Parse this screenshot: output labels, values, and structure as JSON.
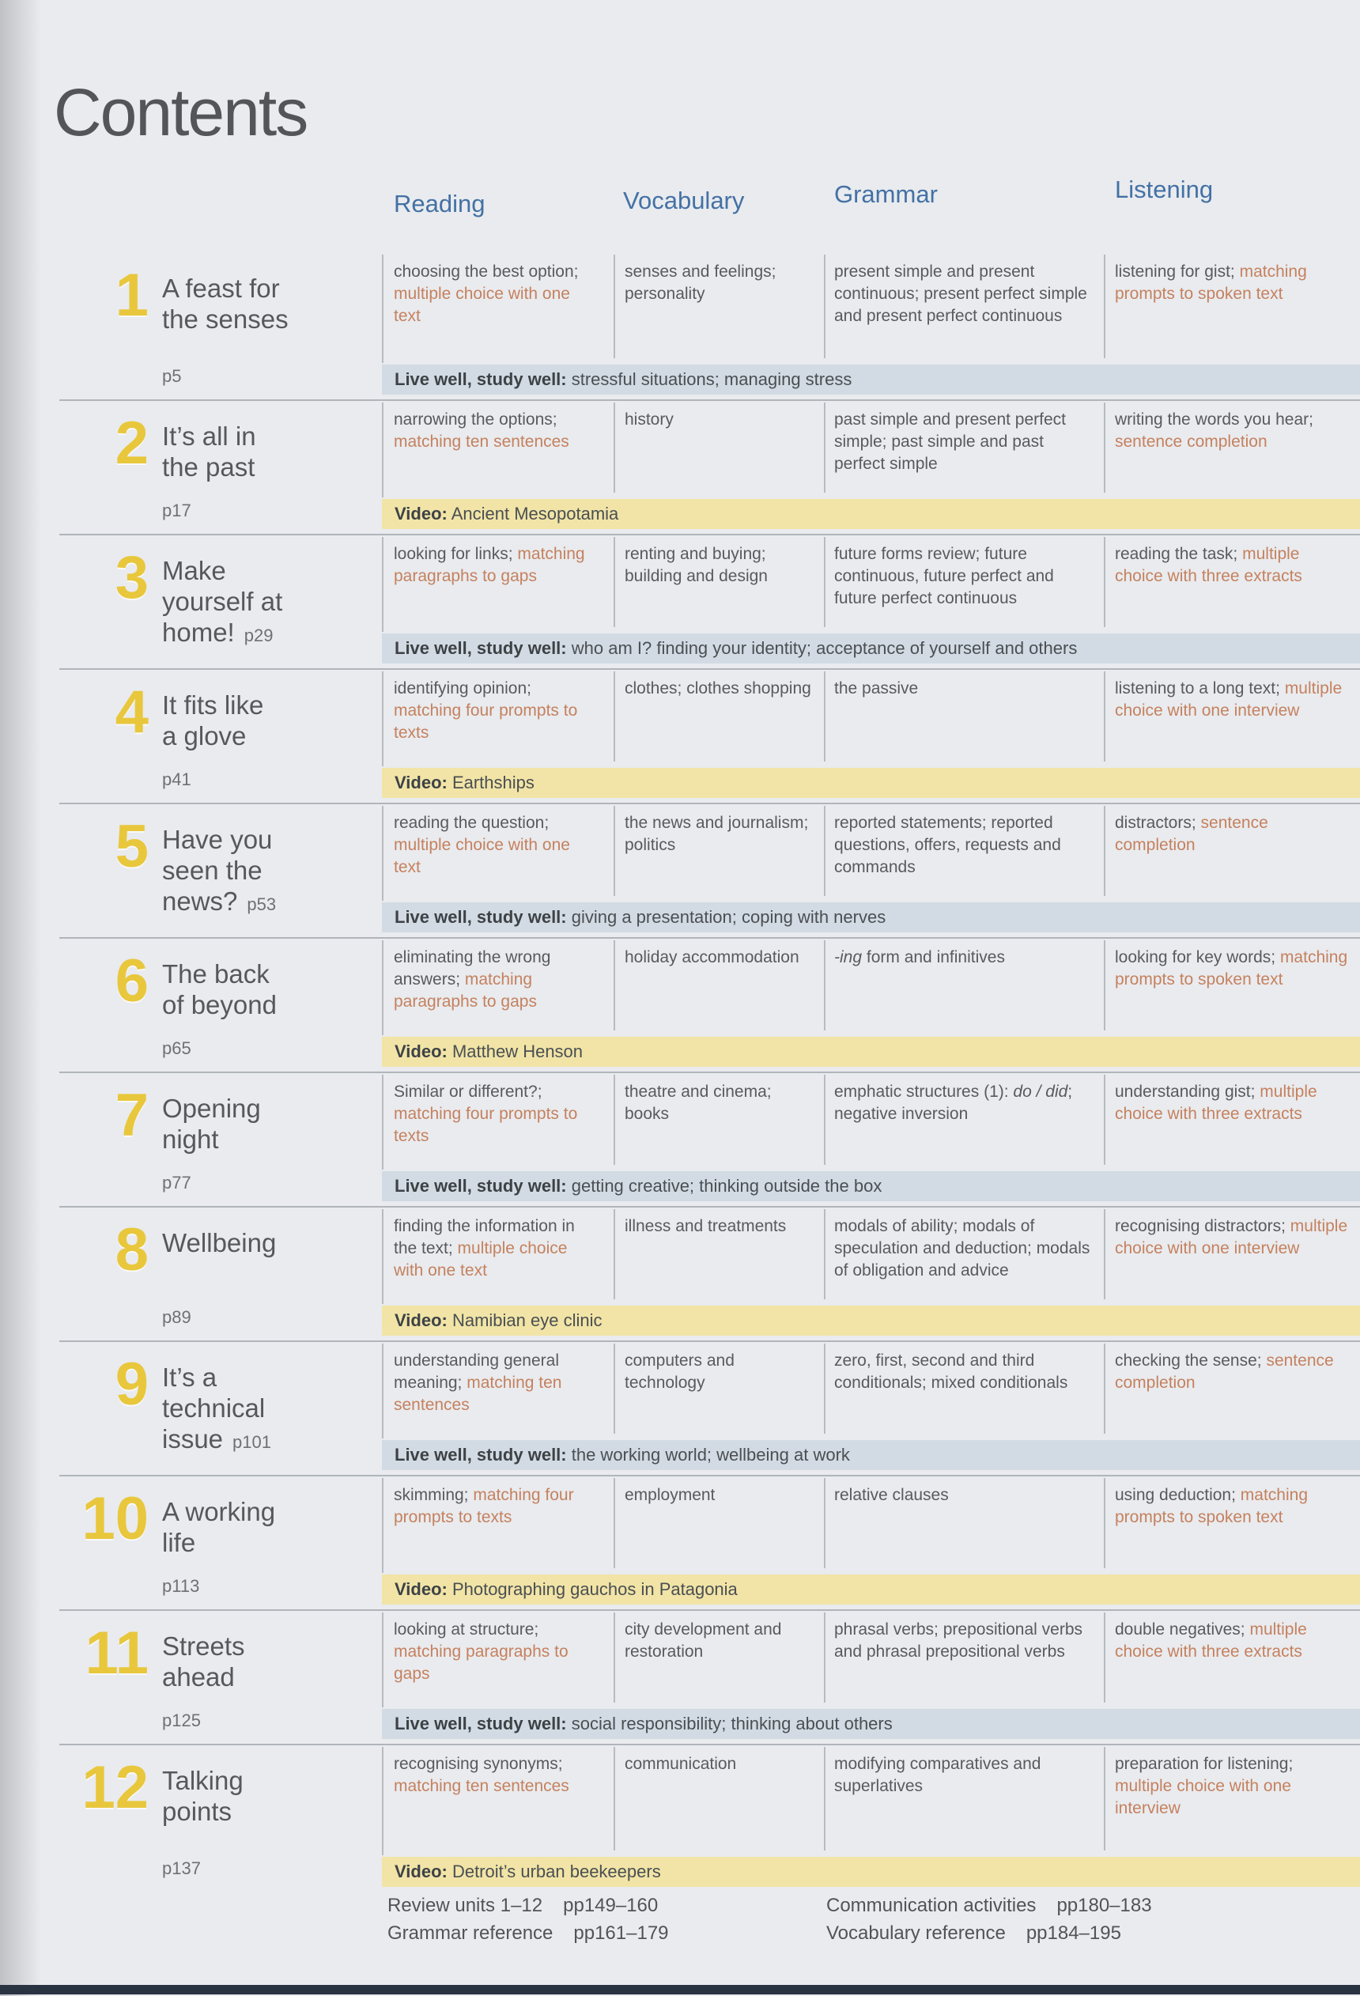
{
  "page_title": "Contents",
  "colors": {
    "header_blue": "#4471a5",
    "number_yellow": "#e8c73c",
    "accent_orange": "#c5815f",
    "bar_live_bg": "#d2dbe3",
    "bar_video_bg": "#f1e4a6"
  },
  "columns": [
    {
      "label": "Reading"
    },
    {
      "label": "Vocabulary"
    },
    {
      "label": "Grammar"
    },
    {
      "label": "Listening"
    }
  ],
  "units": [
    {
      "number": "1",
      "title": "A feast for\nthe senses",
      "page": "p5",
      "page_inline": false,
      "reading": [
        {
          "t": "choosing the best option; ",
          "s": "p"
        },
        {
          "t": "multiple choice with one text",
          "s": "a"
        }
      ],
      "vocabulary": [
        {
          "t": "senses and feelings; personality",
          "s": "p"
        }
      ],
      "grammar": [
        {
          "t": "present simple and present continuous; present perfect simple and present perfect continuous",
          "s": "p"
        }
      ],
      "listening": [
        {
          "t": "listening for gist; ",
          "s": "p"
        },
        {
          "t": "matching prompts to spoken text",
          "s": "a"
        }
      ],
      "footer": {
        "type": "live",
        "label": "Live well, study well:",
        "text": " stressful situations; managing stress"
      }
    },
    {
      "number": "2",
      "title": "It’s all in\nthe past",
      "page": "p17",
      "page_inline": false,
      "reading": [
        {
          "t": "narrowing the options; ",
          "s": "p"
        },
        {
          "t": "matching ten sentences",
          "s": "a"
        }
      ],
      "vocabulary": [
        {
          "t": "history",
          "s": "p"
        }
      ],
      "grammar": [
        {
          "t": "past simple and present perfect simple; past simple and past perfect simple",
          "s": "p"
        }
      ],
      "listening": [
        {
          "t": "writing the words you hear; ",
          "s": "p"
        },
        {
          "t": "sentence completion",
          "s": "a"
        }
      ],
      "footer": {
        "type": "video",
        "label": "Video:",
        "text": " Ancient Mesopotamia"
      }
    },
    {
      "number": "3",
      "title": "Make\nyourself at\nhome!",
      "page": "p29",
      "page_inline": true,
      "reading": [
        {
          "t": "looking for links; ",
          "s": "p"
        },
        {
          "t": "matching paragraphs to gaps",
          "s": "a"
        }
      ],
      "vocabulary": [
        {
          "t": "renting and buying; building and design",
          "s": "p"
        }
      ],
      "grammar": [
        {
          "t": "future forms review; future continuous, future perfect and future perfect continuous",
          "s": "p"
        }
      ],
      "listening": [
        {
          "t": "reading the task; ",
          "s": "p"
        },
        {
          "t": "multiple choice with three extracts",
          "s": "a"
        }
      ],
      "footer": {
        "type": "live",
        "label": "Live well, study well:",
        "text": " who am I? finding your identity; acceptance of yourself and others"
      }
    },
    {
      "number": "4",
      "title": "It fits like\na glove",
      "page": "p41",
      "page_inline": false,
      "reading": [
        {
          "t": "identifying opinion; ",
          "s": "p"
        },
        {
          "t": "matching four prompts to texts",
          "s": "a"
        }
      ],
      "vocabulary": [
        {
          "t": "clothes; clothes shopping",
          "s": "p"
        }
      ],
      "grammar": [
        {
          "t": "the passive",
          "s": "p"
        }
      ],
      "listening": [
        {
          "t": "listening to a long text; ",
          "s": "p"
        },
        {
          "t": "multiple choice with one interview",
          "s": "a"
        }
      ],
      "footer": {
        "type": "video",
        "label": "Video:",
        "text": " Earthships"
      }
    },
    {
      "number": "5",
      "title": "Have you\nseen the\nnews?",
      "page": "p53",
      "page_inline": true,
      "reading": [
        {
          "t": "reading the question; ",
          "s": "p"
        },
        {
          "t": "multiple choice with one text",
          "s": "a"
        }
      ],
      "vocabulary": [
        {
          "t": "the news and journalism; politics",
          "s": "p"
        }
      ],
      "grammar": [
        {
          "t": "reported statements; reported questions, offers, requests and commands",
          "s": "p"
        }
      ],
      "listening": [
        {
          "t": "distractors; ",
          "s": "p"
        },
        {
          "t": "sentence completion",
          "s": "a"
        }
      ],
      "footer": {
        "type": "live",
        "label": "Live well, study well:",
        "text": " giving a presentation; coping with nerves"
      }
    },
    {
      "number": "6",
      "title": "The back\nof beyond",
      "page": "p65",
      "page_inline": false,
      "reading": [
        {
          "t": "eliminating the wrong answers; ",
          "s": "p"
        },
        {
          "t": "matching paragraphs to gaps",
          "s": "a"
        }
      ],
      "vocabulary": [
        {
          "t": "holiday accommodation",
          "s": "p"
        }
      ],
      "grammar": [
        {
          "t": "-ing",
          "s": "i"
        },
        {
          "t": " form and infinitives",
          "s": "p"
        }
      ],
      "listening": [
        {
          "t": "looking for key words; ",
          "s": "p"
        },
        {
          "t": "matching prompts to spoken text",
          "s": "a"
        }
      ],
      "footer": {
        "type": "video",
        "label": "Video:",
        "text": " Matthew Henson"
      }
    },
    {
      "number": "7",
      "title": "Opening\nnight",
      "page": "p77",
      "page_inline": false,
      "reading": [
        {
          "t": "Similar or different?; ",
          "s": "p"
        },
        {
          "t": "matching four prompts to texts",
          "s": "a"
        }
      ],
      "vocabulary": [
        {
          "t": "theatre and cinema; books",
          "s": "p"
        }
      ],
      "grammar": [
        {
          "t": "emphatic structures (1): ",
          "s": "p"
        },
        {
          "t": "do / did",
          "s": "i"
        },
        {
          "t": "; negative inversion",
          "s": "p"
        }
      ],
      "listening": [
        {
          "t": "understanding gist; ",
          "s": "p"
        },
        {
          "t": "multiple choice with three extracts",
          "s": "a"
        }
      ],
      "footer": {
        "type": "live",
        "label": "Live well, study well:",
        "text": " getting creative; thinking outside the box"
      }
    },
    {
      "number": "8",
      "title": "Wellbeing",
      "page": "p89",
      "page_inline": false,
      "reading": [
        {
          "t": "finding the information in the text; ",
          "s": "p"
        },
        {
          "t": "multiple choice with one text",
          "s": "a"
        }
      ],
      "vocabulary": [
        {
          "t": "illness and treatments",
          "s": "p"
        }
      ],
      "grammar": [
        {
          "t": "modals of ability; modals of speculation and deduction; modals of obligation and advice",
          "s": "p"
        }
      ],
      "listening": [
        {
          "t": "recognising distractors; ",
          "s": "p"
        },
        {
          "t": "multiple choice with one interview",
          "s": "a"
        }
      ],
      "footer": {
        "type": "video",
        "label": "Video:",
        "text": " Namibian eye clinic"
      }
    },
    {
      "number": "9",
      "title": "It’s a\ntechnical\nissue",
      "page": "p101",
      "page_inline": true,
      "reading": [
        {
          "t": "understanding general meaning; ",
          "s": "p"
        },
        {
          "t": "matching ten sentences",
          "s": "a"
        }
      ],
      "vocabulary": [
        {
          "t": "computers and technology",
          "s": "p"
        }
      ],
      "grammar": [
        {
          "t": "zero, first, second and third conditionals; mixed conditionals",
          "s": "p"
        }
      ],
      "listening": [
        {
          "t": "checking the sense; ",
          "s": "p"
        },
        {
          "t": "sentence completion",
          "s": "a"
        }
      ],
      "footer": {
        "type": "live",
        "label": "Live well, study well:",
        "text": " the working world; wellbeing at work"
      }
    },
    {
      "number": "10",
      "title": "A working\nlife",
      "page": "p113",
      "page_inline": false,
      "reading": [
        {
          "t": "skimming; ",
          "s": "p"
        },
        {
          "t": "matching four prompts to texts",
          "s": "a"
        }
      ],
      "vocabulary": [
        {
          "t": "employment",
          "s": "p"
        }
      ],
      "grammar": [
        {
          "t": "relative clauses",
          "s": "p"
        }
      ],
      "listening": [
        {
          "t": "using deduction; ",
          "s": "p"
        },
        {
          "t": "matching prompts to spoken text",
          "s": "a"
        }
      ],
      "footer": {
        "type": "video",
        "label": "Video:",
        "text": " Photographing gauchos in Patagonia"
      }
    },
    {
      "number": "11",
      "title": "Streets\nahead",
      "page": "p125",
      "page_inline": false,
      "reading": [
        {
          "t": "looking at structure; ",
          "s": "p"
        },
        {
          "t": "matching paragraphs to gaps",
          "s": "a"
        }
      ],
      "vocabulary": [
        {
          "t": "city development and restoration",
          "s": "p"
        }
      ],
      "grammar": [
        {
          "t": "phrasal verbs; prepositional verbs and phrasal prepositional verbs",
          "s": "p"
        }
      ],
      "listening": [
        {
          "t": "double negatives; ",
          "s": "p"
        },
        {
          "t": "multiple choice with three extracts",
          "s": "a"
        }
      ],
      "footer": {
        "type": "live",
        "label": "Live well, study well:",
        "text": " social responsibility; thinking about others"
      }
    },
    {
      "number": "12",
      "title": "Talking\npoints",
      "page": "p137",
      "page_inline": false,
      "reading": [
        {
          "t": "recognising synonyms; ",
          "s": "p"
        },
        {
          "t": "matching ten sentences",
          "s": "a"
        }
      ],
      "vocabulary": [
        {
          "t": "communication",
          "s": "p"
        }
      ],
      "grammar": [
        {
          "t": "modifying comparatives and superlatives",
          "s": "p"
        }
      ],
      "listening": [
        {
          "t": "preparation for listening; ",
          "s": "p"
        },
        {
          "t": "multiple choice with one interview",
          "s": "a"
        }
      ],
      "footer": {
        "type": "video",
        "label": "Video:",
        "text": " Detroit’s urban beekeepers"
      }
    }
  ],
  "references": [
    {
      "label": "Review units 1–12",
      "pages": "pp149–160"
    },
    {
      "label": "Grammar reference",
      "pages": "pp161–179"
    },
    {
      "label": "Communication activities",
      "pages": "pp180–183"
    },
    {
      "label": "Vocabulary reference",
      "pages": "pp184–195"
    }
  ]
}
